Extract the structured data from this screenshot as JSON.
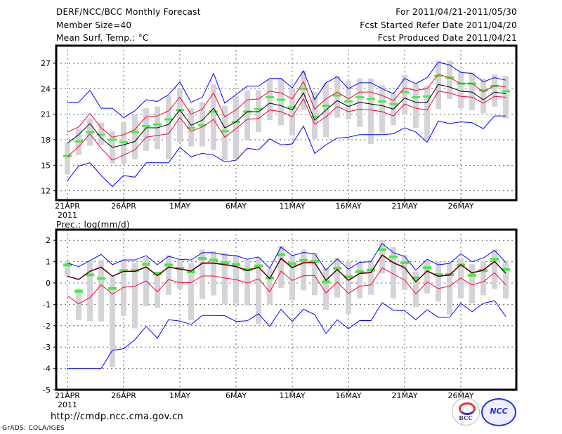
{
  "header": {
    "title": "DERF/NCC/BCC Monthly Forecast",
    "member_size": "Member Size=40",
    "variable": "Mean Surf. Temp.: °C",
    "period": "For 2011/04/21-2011/05/30",
    "started": "Fcst Started Refer Date 2011/04/20",
    "produced": "Fcst Produced Date 2011/04/21"
  },
  "footer": {
    "url": "http://cmdp.ncc.cma.gov.cn",
    "credit": "GrADS: COLA/IGES",
    "logo_bcc": "BCC",
    "logo_ncc": "NCC"
  },
  "colors": {
    "max_min": "#0000ff",
    "spread": "#ff0033",
    "mean": "#000000",
    "obs": "#44ee44",
    "range": "#d4d4d8"
  },
  "chart_data": [
    {
      "type": "line",
      "title": "Mean Surf. Temp.: °C",
      "ylim": [
        11,
        29
      ],
      "yticks": [
        12,
        15,
        18,
        21,
        24,
        27
      ],
      "xticks": [
        {
          "day": 0,
          "label": "21APR",
          "sub": "2011"
        },
        {
          "day": 5,
          "label": "26APR"
        },
        {
          "day": 10,
          "label": "1MAY"
        },
        {
          "day": 15,
          "label": "6MAY"
        },
        {
          "day": 20,
          "label": "11MAY"
        },
        {
          "day": 25,
          "label": "16MAY"
        },
        {
          "day": 30,
          "label": "21MAY"
        },
        {
          "day": 35,
          "label": "26MAY"
        }
      ],
      "grid": true,
      "days": 40,
      "mean": [
        17.6,
        18.6,
        19.9,
        18.2,
        17.1,
        17.4,
        17.8,
        19.4,
        19.4,
        19.8,
        21.5,
        19.7,
        20.3,
        21.7,
        19.4,
        20.1,
        21.3,
        21.3,
        22.3,
        22.0,
        21.5,
        23.5,
        20.3,
        21.5,
        22.6,
        21.9,
        22.4,
        22.2,
        22.0,
        21.6,
        22.9,
        22.4,
        22.4,
        24.5,
        24.2,
        23.7,
        23.6,
        22.7,
        23.6,
        23.4
      ],
      "spread_upper": [
        18.9,
        19.5,
        21.1,
        19.4,
        18.3,
        18.6,
        19.2,
        20.7,
        20.8,
        21.4,
        23.0,
        21.0,
        21.6,
        23.5,
        20.7,
        21.5,
        22.7,
        22.8,
        23.7,
        23.5,
        22.8,
        24.8,
        21.6,
        22.8,
        23.6,
        22.8,
        23.6,
        23.6,
        23.2,
        22.6,
        24.1,
        23.8,
        24.0,
        25.7,
        25.3,
        24.6,
        24.6,
        23.6,
        24.4,
        24.2
      ],
      "spread_lower": [
        16.0,
        17.2,
        18.7,
        17.0,
        15.6,
        16.2,
        16.8,
        18.3,
        18.5,
        18.7,
        20.6,
        19.0,
        19.5,
        20.4,
        18.3,
        19.3,
        20.4,
        20.5,
        21.5,
        21.3,
        20.7,
        22.8,
        19.8,
        20.7,
        21.9,
        21.3,
        21.6,
        21.5,
        21.3,
        20.8,
        22.2,
        21.7,
        21.5,
        23.7,
        23.5,
        23.1,
        23.0,
        22.3,
        23.1,
        23.0
      ],
      "max": [
        22.4,
        22.4,
        23.8,
        21.7,
        21.7,
        20.6,
        21.4,
        22.7,
        22.5,
        23.3,
        24.8,
        22.4,
        23.0,
        25.8,
        22.3,
        23.3,
        24.3,
        24.3,
        25.2,
        25.2,
        24.1,
        26.1,
        22.7,
        24.7,
        25.4,
        24.0,
        24.7,
        24.7,
        24.0,
        23.4,
        25.2,
        24.6,
        25.3,
        27.1,
        26.8,
        25.9,
        25.8,
        24.8,
        25.3,
        25.0
      ],
      "min": [
        13.2,
        14.9,
        15.3,
        13.8,
        12.5,
        13.8,
        13.6,
        15.3,
        15.3,
        15.3,
        17.1,
        16.0,
        16.4,
        16.2,
        15.4,
        15.6,
        17.0,
        16.8,
        18.1,
        17.4,
        17.5,
        19.6,
        16.4,
        17.4,
        18.2,
        18.3,
        18.6,
        18.6,
        18.6,
        18.7,
        19.4,
        18.9,
        17.7,
        20.2,
        19.9,
        20.1,
        20.0,
        19.3,
        20.8,
        20.8
      ],
      "obs": [
        16.1,
        17.8,
        18.9,
        18.6,
        18.0,
        17.7,
        18.9,
        19.6,
        19.8,
        20.4,
        21.5,
        19.4,
        19.7,
        21.3,
        19.0,
        20.1,
        21.3,
        21.6,
        23.0,
        22.7,
        21.8,
        24.0,
        20.7,
        22.0,
        23.2,
        22.5,
        23.0,
        22.8,
        22.5,
        22.2,
        23.6,
        23.0,
        23.1,
        25.5,
        25.3,
        24.6,
        24.6,
        23.8,
        24.3,
        23.7
      ],
      "range_top": [
        17.7,
        19.3,
        20.5,
        20.0,
        19.0,
        20.1,
        21.0,
        21.7,
        21.9,
        23.2,
        24.1,
        21.7,
        22.4,
        24.5,
        22.0,
        23.2,
        23.8,
        23.8,
        25.1,
        25.2,
        24.1,
        26.1,
        23.6,
        24.7,
        25.5,
        24.9,
        25.2,
        25.2,
        24.4,
        23.4,
        25.6,
        24.6,
        24.3,
        27.3,
        27.3,
        25.9,
        25.9,
        25.2,
        25.7,
        25.5
      ],
      "range_bottom": [
        13.9,
        16.2,
        17.3,
        17.4,
        15.2,
        15.2,
        15.7,
        16.7,
        16.9,
        15.7,
        17.7,
        17.2,
        17.2,
        16.8,
        15.6,
        15.7,
        17.9,
        18.9,
        20.3,
        19.7,
        18.5,
        21.5,
        18.1,
        18.3,
        20.6,
        20.4,
        19.5,
        17.5,
        18.8,
        19.7,
        21.0,
        19.4,
        17.9,
        21.6,
        22.8,
        21.7,
        21.5,
        21.1,
        21.9,
        20.5
      ]
    },
    {
      "type": "line",
      "title": "Prec.: log(mm/d)",
      "ylim": [
        -5,
        2.5
      ],
      "yticks": [
        -5,
        -4,
        -3,
        -2,
        -1,
        0,
        1,
        2
      ],
      "xticks": [
        {
          "day": 0,
          "label": "21APR",
          "sub": "2011"
        },
        {
          "day": 5,
          "label": "26APR"
        },
        {
          "day": 10,
          "label": "1MAY"
        },
        {
          "day": 15,
          "label": "6MAY"
        },
        {
          "day": 20,
          "label": "11MAY"
        },
        {
          "day": 25,
          "label": "16MAY"
        },
        {
          "day": 30,
          "label": "21MAY"
        },
        {
          "day": 35,
          "label": "26MAY"
        }
      ],
      "grid": true,
      "days": 40,
      "mean": [
        0.31,
        0.16,
        0.54,
        0.73,
        0.31,
        0.54,
        0.54,
        0.74,
        0.34,
        0.73,
        0.65,
        0.55,
        0.92,
        0.92,
        0.85,
        0.76,
        0.57,
        0.73,
        0.2,
        1.14,
        0.71,
        0.94,
        0.94,
        0.12,
        0.62,
        0.12,
        0.44,
        0.48,
        1.3,
        0.94,
        0.71,
        0.05,
        0.55,
        0.31,
        0.37,
        0.85,
        0.46,
        0.6,
        1.0,
        0.45
      ],
      "spread_upper": [
        0.33,
        0.18,
        0.56,
        0.76,
        0.33,
        0.56,
        0.56,
        0.77,
        0.36,
        0.76,
        0.67,
        0.58,
        0.95,
        0.95,
        0.88,
        0.79,
        0.6,
        0.76,
        0.22,
        1.18,
        0.74,
        0.97,
        0.97,
        0.14,
        0.65,
        0.14,
        0.47,
        0.51,
        1.33,
        0.97,
        0.74,
        0.07,
        0.58,
        0.33,
        0.4,
        0.88,
        0.49,
        0.63,
        1.03,
        0.47
      ],
      "spread_lower": [
        -0.6,
        -0.98,
        -0.68,
        -0.09,
        -0.52,
        -0.2,
        -0.15,
        0.1,
        -0.41,
        0.16,
        0.02,
        0.02,
        0.33,
        0.33,
        0.23,
        0.16,
        0.0,
        0.2,
        -0.41,
        0.55,
        0.12,
        0.34,
        0.34,
        -0.47,
        0.05,
        -0.49,
        -0.15,
        -0.09,
        0.71,
        0.42,
        0.14,
        -0.51,
        0.05,
        -0.26,
        -0.15,
        0.23,
        -0.09,
        0.06,
        0.48,
        -0.09
      ],
      "max": [
        0.94,
        0.77,
        1.05,
        1.34,
        0.86,
        1.08,
        1.08,
        1.28,
        0.86,
        1.25,
        1.11,
        1.08,
        1.42,
        1.42,
        1.32,
        1.28,
        1.11,
        1.22,
        0.69,
        1.68,
        1.28,
        1.43,
        1.37,
        0.6,
        1.13,
        0.65,
        0.97,
        1.0,
        1.85,
        1.42,
        1.25,
        0.6,
        1.11,
        0.85,
        0.92,
        1.37,
        1.0,
        1.17,
        1.53,
        0.96
      ],
      "min": [
        -4.0,
        -4.0,
        -4.0,
        -4.0,
        -3.15,
        -3.08,
        -2.66,
        -2.03,
        -2.58,
        -1.72,
        -1.78,
        -1.94,
        -1.52,
        -1.52,
        -1.53,
        -1.8,
        -1.77,
        -1.44,
        -2.03,
        -1.23,
        -1.8,
        -1.23,
        -1.48,
        -2.37,
        -1.72,
        -2.14,
        -1.76,
        -1.76,
        -0.92,
        -1.28,
        -1.3,
        -1.72,
        -1.25,
        -1.61,
        -1.6,
        -0.95,
        -1.34,
        -0.95,
        -0.83,
        -1.57
      ],
      "obs": [
        0.86,
        -0.37,
        0.4,
        0.23,
        -0.24,
        0.6,
        0.6,
        0.9,
        0.48,
        0.86,
        0.71,
        0.54,
        1.17,
        1.09,
        0.96,
        0.88,
        0.65,
        0.82,
        0.25,
        1.34,
        0.92,
        1.08,
        1.03,
        0.07,
        0.71,
        0.31,
        0.55,
        0.62,
        1.58,
        1.24,
        0.97,
        0.25,
        0.73,
        0.41,
        0.41,
        0.86,
        0.38,
        0.6,
        1.13,
        0.65
      ],
      "range_top": [
        1.05,
        -0.26,
        1.05,
        1.08,
        0.31,
        1.11,
        0.94,
        1.19,
        0.48,
        1.3,
        1.11,
        0.94,
        1.57,
        1.49,
        1.4,
        1.3,
        1.08,
        1.2,
        0.68,
        1.74,
        1.28,
        1.57,
        1.4,
        0.71,
        1.19,
        1.0,
        0.96,
        1.08,
        2.0,
        1.68,
        1.3,
        0.54,
        1.05,
        1.0,
        0.92,
        1.17,
        0.88,
        1.03,
        1.57,
        1.05
      ],
      "range_bottom": [
        0.34,
        -1.74,
        -1.78,
        -1.8,
        -3.95,
        -1.55,
        -2.12,
        -1.09,
        -1.17,
        -0.55,
        -0.28,
        -1.74,
        -0.75,
        -0.58,
        -0.98,
        -0.97,
        -1.06,
        -1.92,
        -1.0,
        -0.23,
        -0.81,
        -0.34,
        -0.57,
        -1.26,
        -0.68,
        -1.44,
        -0.72,
        -0.55,
        0.45,
        -0.72,
        -0.32,
        -1.12,
        -0.49,
        -0.87,
        -1.48,
        -0.72,
        -0.95,
        -0.58,
        -0.28,
        -0.72
      ]
    }
  ]
}
